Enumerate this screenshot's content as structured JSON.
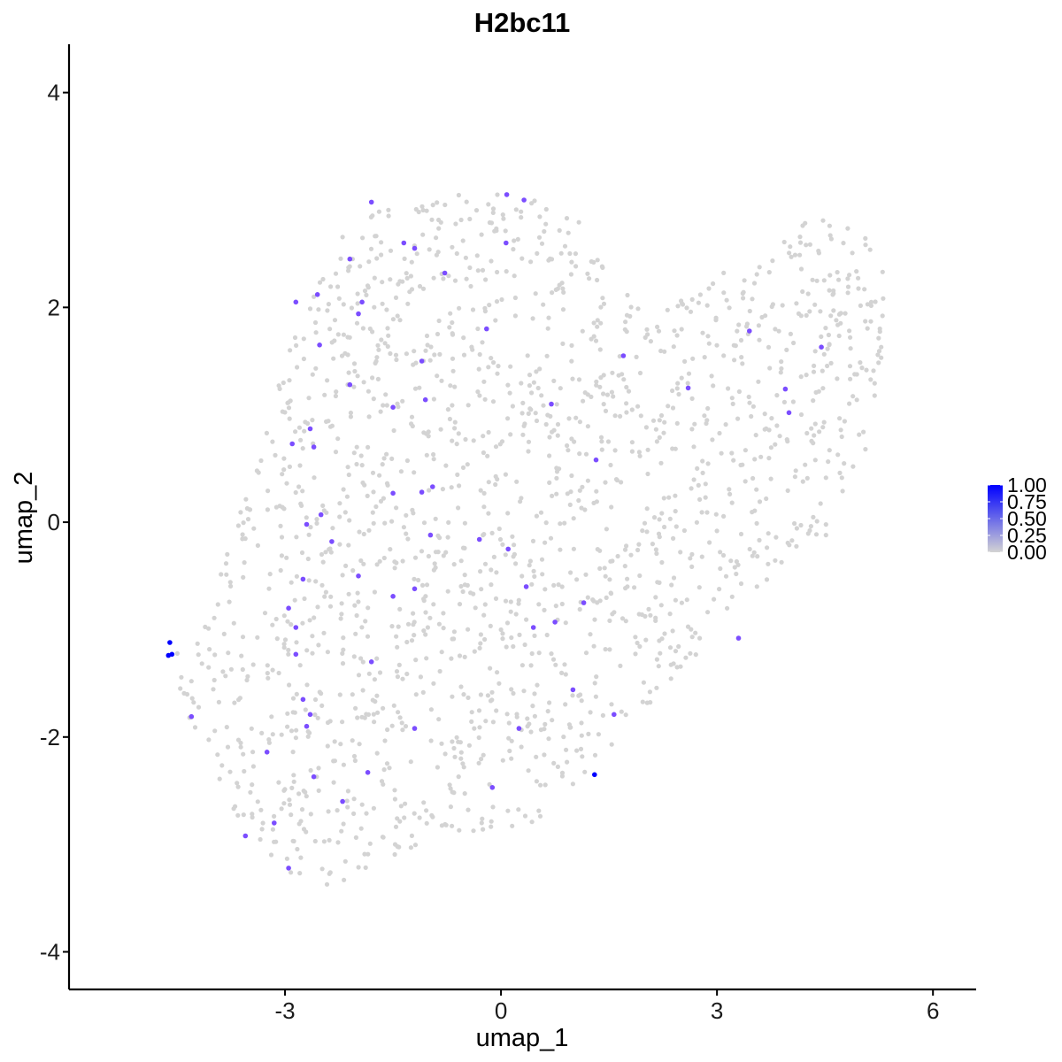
{
  "chart_data": {
    "type": "scatter",
    "title": "H2bc11",
    "xlabel": "umap_1",
    "ylabel": "umap_2",
    "xlim": [
      -6.0,
      6.6
    ],
    "ylim": [
      -4.35,
      4.45
    ],
    "x_ticks": [
      -3,
      0,
      3,
      6
    ],
    "x_tick_labels": [
      "-3",
      "0",
      "3",
      "6"
    ],
    "y_ticks": [
      -4,
      -2,
      0,
      2,
      4
    ],
    "y_tick_labels": [
      "-4",
      "-2",
      "0",
      "2",
      "4"
    ],
    "grid": false,
    "legend": {
      "type": "colorbar",
      "placement": "right",
      "breaks": [
        1.0,
        0.75,
        0.5,
        0.25,
        0.0
      ],
      "labels": [
        "1.00",
        "0.75",
        "0.50",
        "0.25",
        "0.00"
      ]
    },
    "colors": {
      "low": "#d3d3d3",
      "high": "#0000ff"
    },
    "background_cell_count": 1750,
    "expressing_points": [
      {
        "x": -4.6,
        "y": -1.12,
        "v": 1.0
      },
      {
        "x": -4.62,
        "y": -1.24,
        "v": 1.0
      },
      {
        "x": -4.57,
        "y": -1.23,
        "v": 1.0
      },
      {
        "x": 1.3,
        "y": -2.35,
        "v": 1.0
      },
      {
        "x": -4.3,
        "y": -1.81,
        "v": 0.7
      },
      {
        "x": -1.8,
        "y": 2.98,
        "v": 0.7
      },
      {
        "x": 0.08,
        "y": 3.05,
        "v": 0.7
      },
      {
        "x": 0.32,
        "y": 3.0,
        "v": 0.7
      },
      {
        "x": -1.35,
        "y": 2.6,
        "v": 0.7
      },
      {
        "x": -1.2,
        "y": 2.55,
        "v": 0.7
      },
      {
        "x": -2.1,
        "y": 2.45,
        "v": 0.7
      },
      {
        "x": -0.78,
        "y": 2.32,
        "v": 0.7
      },
      {
        "x": 0.07,
        "y": 2.6,
        "v": 0.7
      },
      {
        "x": -2.55,
        "y": 2.12,
        "v": 0.7
      },
      {
        "x": -2.85,
        "y": 2.05,
        "v": 0.7
      },
      {
        "x": -1.93,
        "y": 2.05,
        "v": 0.7
      },
      {
        "x": -1.98,
        "y": 1.94,
        "v": 0.7
      },
      {
        "x": -0.2,
        "y": 1.8,
        "v": 0.7
      },
      {
        "x": -2.52,
        "y": 1.65,
        "v": 0.7
      },
      {
        "x": -1.1,
        "y": 1.5,
        "v": 0.7
      },
      {
        "x": -2.1,
        "y": 1.28,
        "v": 0.7
      },
      {
        "x": -1.05,
        "y": 1.14,
        "v": 0.7
      },
      {
        "x": -1.5,
        "y": 1.07,
        "v": 0.7
      },
      {
        "x": 0.7,
        "y": 1.1,
        "v": 0.7
      },
      {
        "x": 1.7,
        "y": 1.55,
        "v": 0.7
      },
      {
        "x": 2.6,
        "y": 1.25,
        "v": 0.7
      },
      {
        "x": 3.45,
        "y": 1.78,
        "v": 0.7
      },
      {
        "x": 4.45,
        "y": 1.63,
        "v": 0.7
      },
      {
        "x": 3.95,
        "y": 1.24,
        "v": 0.7
      },
      {
        "x": 4.0,
        "y": 1.02,
        "v": 0.7
      },
      {
        "x": 1.32,
        "y": 0.58,
        "v": 0.7
      },
      {
        "x": -2.65,
        "y": 0.87,
        "v": 0.7
      },
      {
        "x": -2.9,
        "y": 0.73,
        "v": 0.7
      },
      {
        "x": -2.6,
        "y": 0.7,
        "v": 0.7
      },
      {
        "x": -1.5,
        "y": 0.27,
        "v": 0.7
      },
      {
        "x": -1.1,
        "y": 0.28,
        "v": 0.7
      },
      {
        "x": -0.95,
        "y": 0.33,
        "v": 0.7
      },
      {
        "x": -2.5,
        "y": 0.07,
        "v": 0.7
      },
      {
        "x": -2.7,
        "y": -0.02,
        "v": 0.7
      },
      {
        "x": -2.35,
        "y": -0.18,
        "v": 0.7
      },
      {
        "x": -0.98,
        "y": -0.12,
        "v": 0.7
      },
      {
        "x": -0.3,
        "y": -0.16,
        "v": 0.7
      },
      {
        "x": 0.1,
        "y": -0.25,
        "v": 0.7
      },
      {
        "x": -2.75,
        "y": -0.53,
        "v": 0.7
      },
      {
        "x": -1.98,
        "y": -0.5,
        "v": 0.7
      },
      {
        "x": -1.2,
        "y": -0.62,
        "v": 0.7
      },
      {
        "x": -1.5,
        "y": -0.69,
        "v": 0.7
      },
      {
        "x": 0.35,
        "y": -0.6,
        "v": 0.7
      },
      {
        "x": 1.15,
        "y": -0.75,
        "v": 0.7
      },
      {
        "x": -2.95,
        "y": -0.8,
        "v": 0.7
      },
      {
        "x": 0.75,
        "y": -0.93,
        "v": 0.7
      },
      {
        "x": 0.45,
        "y": -0.98,
        "v": 0.7
      },
      {
        "x": -2.85,
        "y": -0.98,
        "v": 0.7
      },
      {
        "x": 3.3,
        "y": -1.08,
        "v": 0.7
      },
      {
        "x": -2.85,
        "y": -1.23,
        "v": 0.7
      },
      {
        "x": -1.8,
        "y": -1.3,
        "v": 0.7
      },
      {
        "x": 1.0,
        "y": -1.56,
        "v": 0.7
      },
      {
        "x": -2.75,
        "y": -1.65,
        "v": 0.7
      },
      {
        "x": -2.65,
        "y": -1.79,
        "v": 0.7
      },
      {
        "x": 1.57,
        "y": -1.79,
        "v": 0.7
      },
      {
        "x": -2.7,
        "y": -1.9,
        "v": 0.7
      },
      {
        "x": -1.2,
        "y": -1.92,
        "v": 0.7
      },
      {
        "x": 0.25,
        "y": -1.92,
        "v": 0.7
      },
      {
        "x": -3.25,
        "y": -2.14,
        "v": 0.7
      },
      {
        "x": -1.85,
        "y": -2.33,
        "v": 0.7
      },
      {
        "x": -2.6,
        "y": -2.37,
        "v": 0.7
      },
      {
        "x": -0.12,
        "y": -2.47,
        "v": 0.7
      },
      {
        "x": -2.2,
        "y": -2.6,
        "v": 0.7
      },
      {
        "x": -3.15,
        "y": -2.8,
        "v": 0.7
      },
      {
        "x": -3.55,
        "y": -2.92,
        "v": 0.7
      },
      {
        "x": -2.95,
        "y": -3.22,
        "v": 0.7
      }
    ]
  }
}
